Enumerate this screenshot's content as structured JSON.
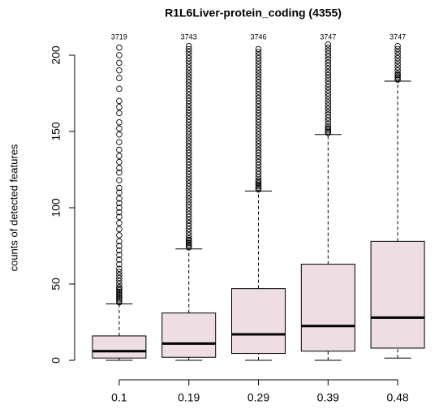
{
  "chart_data": {
    "type": "box",
    "title": "R1L6Liver-protein_coding (4355)",
    "y_label": "counts of detected features",
    "categories": [
      "0.1",
      "0.19",
      "0.29",
      "0.39",
      "0.48"
    ],
    "top_labels": [
      "3719",
      "3743",
      "3746",
      "3747",
      "3747"
    ],
    "ylim": [
      -8.5,
      208.5
    ],
    "yticks": [
      0,
      50,
      100,
      150,
      200
    ],
    "box_color": "#eedde3",
    "boxes": [
      {
        "whislo": 0,
        "q1": 1.5,
        "med": 6,
        "q3": 16,
        "whishi": 37,
        "outliers": [
          38,
          39,
          40,
          41,
          42,
          43,
          44,
          45,
          46,
          47,
          48,
          50,
          52,
          54,
          56,
          58,
          60,
          63,
          66,
          69,
          72,
          75,
          78,
          82,
          86,
          90,
          94,
          97,
          100,
          103,
          106,
          110,
          113,
          118,
          123,
          126,
          130,
          134,
          138,
          143,
          148,
          152,
          156,
          162,
          166,
          170,
          178,
          185,
          190,
          195,
          200,
          205
        ]
      },
      {
        "whislo": 0,
        "q1": 2,
        "med": 11,
        "q3": 31,
        "whishi": 73,
        "outliers": [
          74,
          75,
          76,
          77,
          78,
          79,
          80,
          82,
          84,
          86,
          88,
          90,
          92,
          94,
          96,
          98,
          100,
          102,
          104,
          106,
          108,
          110,
          112,
          114,
          116,
          118,
          120,
          122,
          124,
          126,
          128,
          130,
          132,
          134,
          136,
          138,
          140,
          142,
          144,
          146,
          148,
          150,
          152,
          154,
          156,
          158,
          160,
          162,
          164,
          166,
          168,
          170,
          172,
          174,
          176,
          178,
          180,
          182,
          184,
          186,
          188,
          190,
          192,
          194,
          196,
          198,
          200,
          202,
          204,
          206
        ]
      },
      {
        "whislo": 0,
        "q1": 4.5,
        "med": 17,
        "q3": 47,
        "whishi": 111,
        "outliers": [
          112,
          113,
          114,
          115,
          116,
          117,
          118,
          120,
          122,
          124,
          126,
          128,
          130,
          132,
          134,
          136,
          138,
          140,
          142,
          144,
          146,
          148,
          150,
          152,
          154,
          156,
          158,
          160,
          162,
          164,
          166,
          168,
          170,
          172,
          174,
          176,
          178,
          180,
          182,
          184,
          186,
          188,
          190,
          192,
          194,
          196,
          198,
          200,
          202,
          204
        ]
      },
      {
        "whislo": 0,
        "q1": 6,
        "med": 22.5,
        "q3": 63,
        "whishi": 148,
        "outliers": [
          149,
          150,
          151,
          152,
          153,
          155,
          157,
          159,
          161,
          163,
          165,
          167,
          169,
          171,
          173,
          175,
          177,
          179,
          181,
          183,
          185,
          187,
          189,
          191,
          193,
          195,
          197,
          199,
          201,
          203,
          205,
          207
        ]
      },
      {
        "whislo": 1.5,
        "q1": 8,
        "med": 28,
        "q3": 78,
        "whishi": 183,
        "outliers": [
          184,
          185,
          186,
          187,
          188,
          190,
          192,
          194,
          196,
          198,
          200,
          202,
          204,
          206
        ]
      }
    ]
  }
}
